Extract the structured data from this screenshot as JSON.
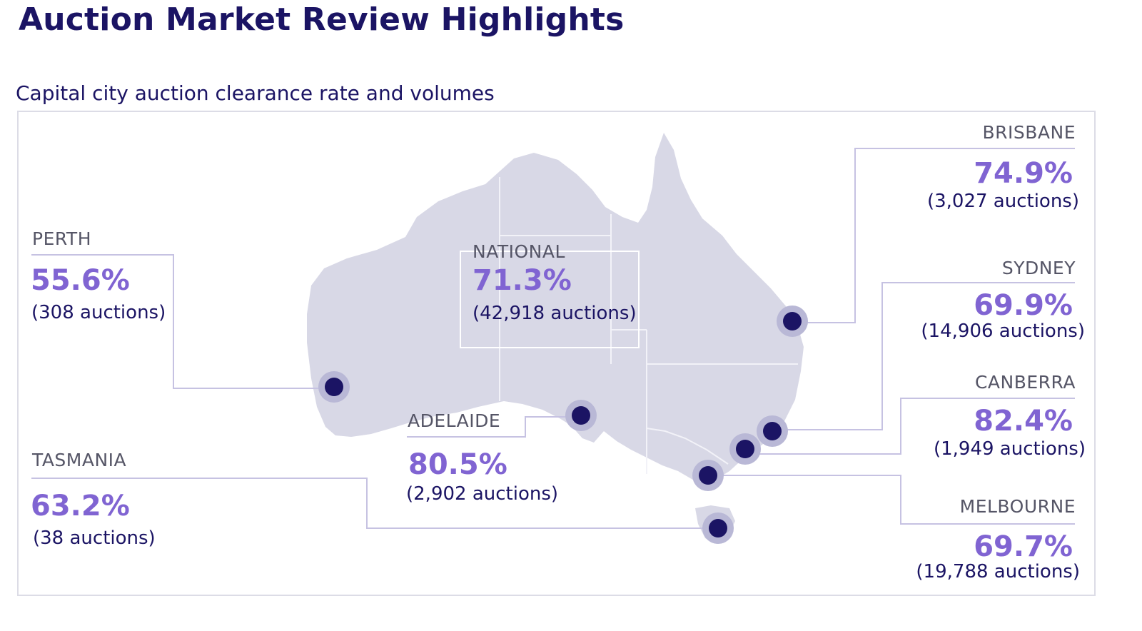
{
  "header": {
    "title": "Auction Market Review Highlights",
    "subtitle": "Capital city auction clearance rate and volumes"
  },
  "colors": {
    "title": "#1b1464",
    "rate": "#8064d2",
    "land": "#d8d8e6",
    "marker": "#1b1464",
    "leader_line": "#c6c2e2"
  },
  "national": {
    "label": "NATIONAL",
    "rate": "71.3%",
    "auctions": "(42,918 auctions)"
  },
  "cities": {
    "perth": {
      "label": "PERTH",
      "rate": "55.6%",
      "auctions": "(308 auctions)"
    },
    "tasmania": {
      "label": "TASMANIA",
      "rate": "63.2%",
      "auctions": "(38 auctions)"
    },
    "adelaide": {
      "label": "ADELAIDE",
      "rate": "80.5%",
      "auctions": "(2,902 auctions)"
    },
    "brisbane": {
      "label": "BRISBANE",
      "rate": "74.9%",
      "auctions": "(3,027 auctions)"
    },
    "sydney": {
      "label": "SYDNEY",
      "rate": "69.9%",
      "auctions": "(14,906 auctions)"
    },
    "canberra": {
      "label": "CANBERRA",
      "rate": "82.4%",
      "auctions": "(1,949 auctions)"
    },
    "melbourne": {
      "label": "MELBOURNE",
      "rate": "69.7%",
      "auctions": "(19,788 auctions)"
    }
  }
}
